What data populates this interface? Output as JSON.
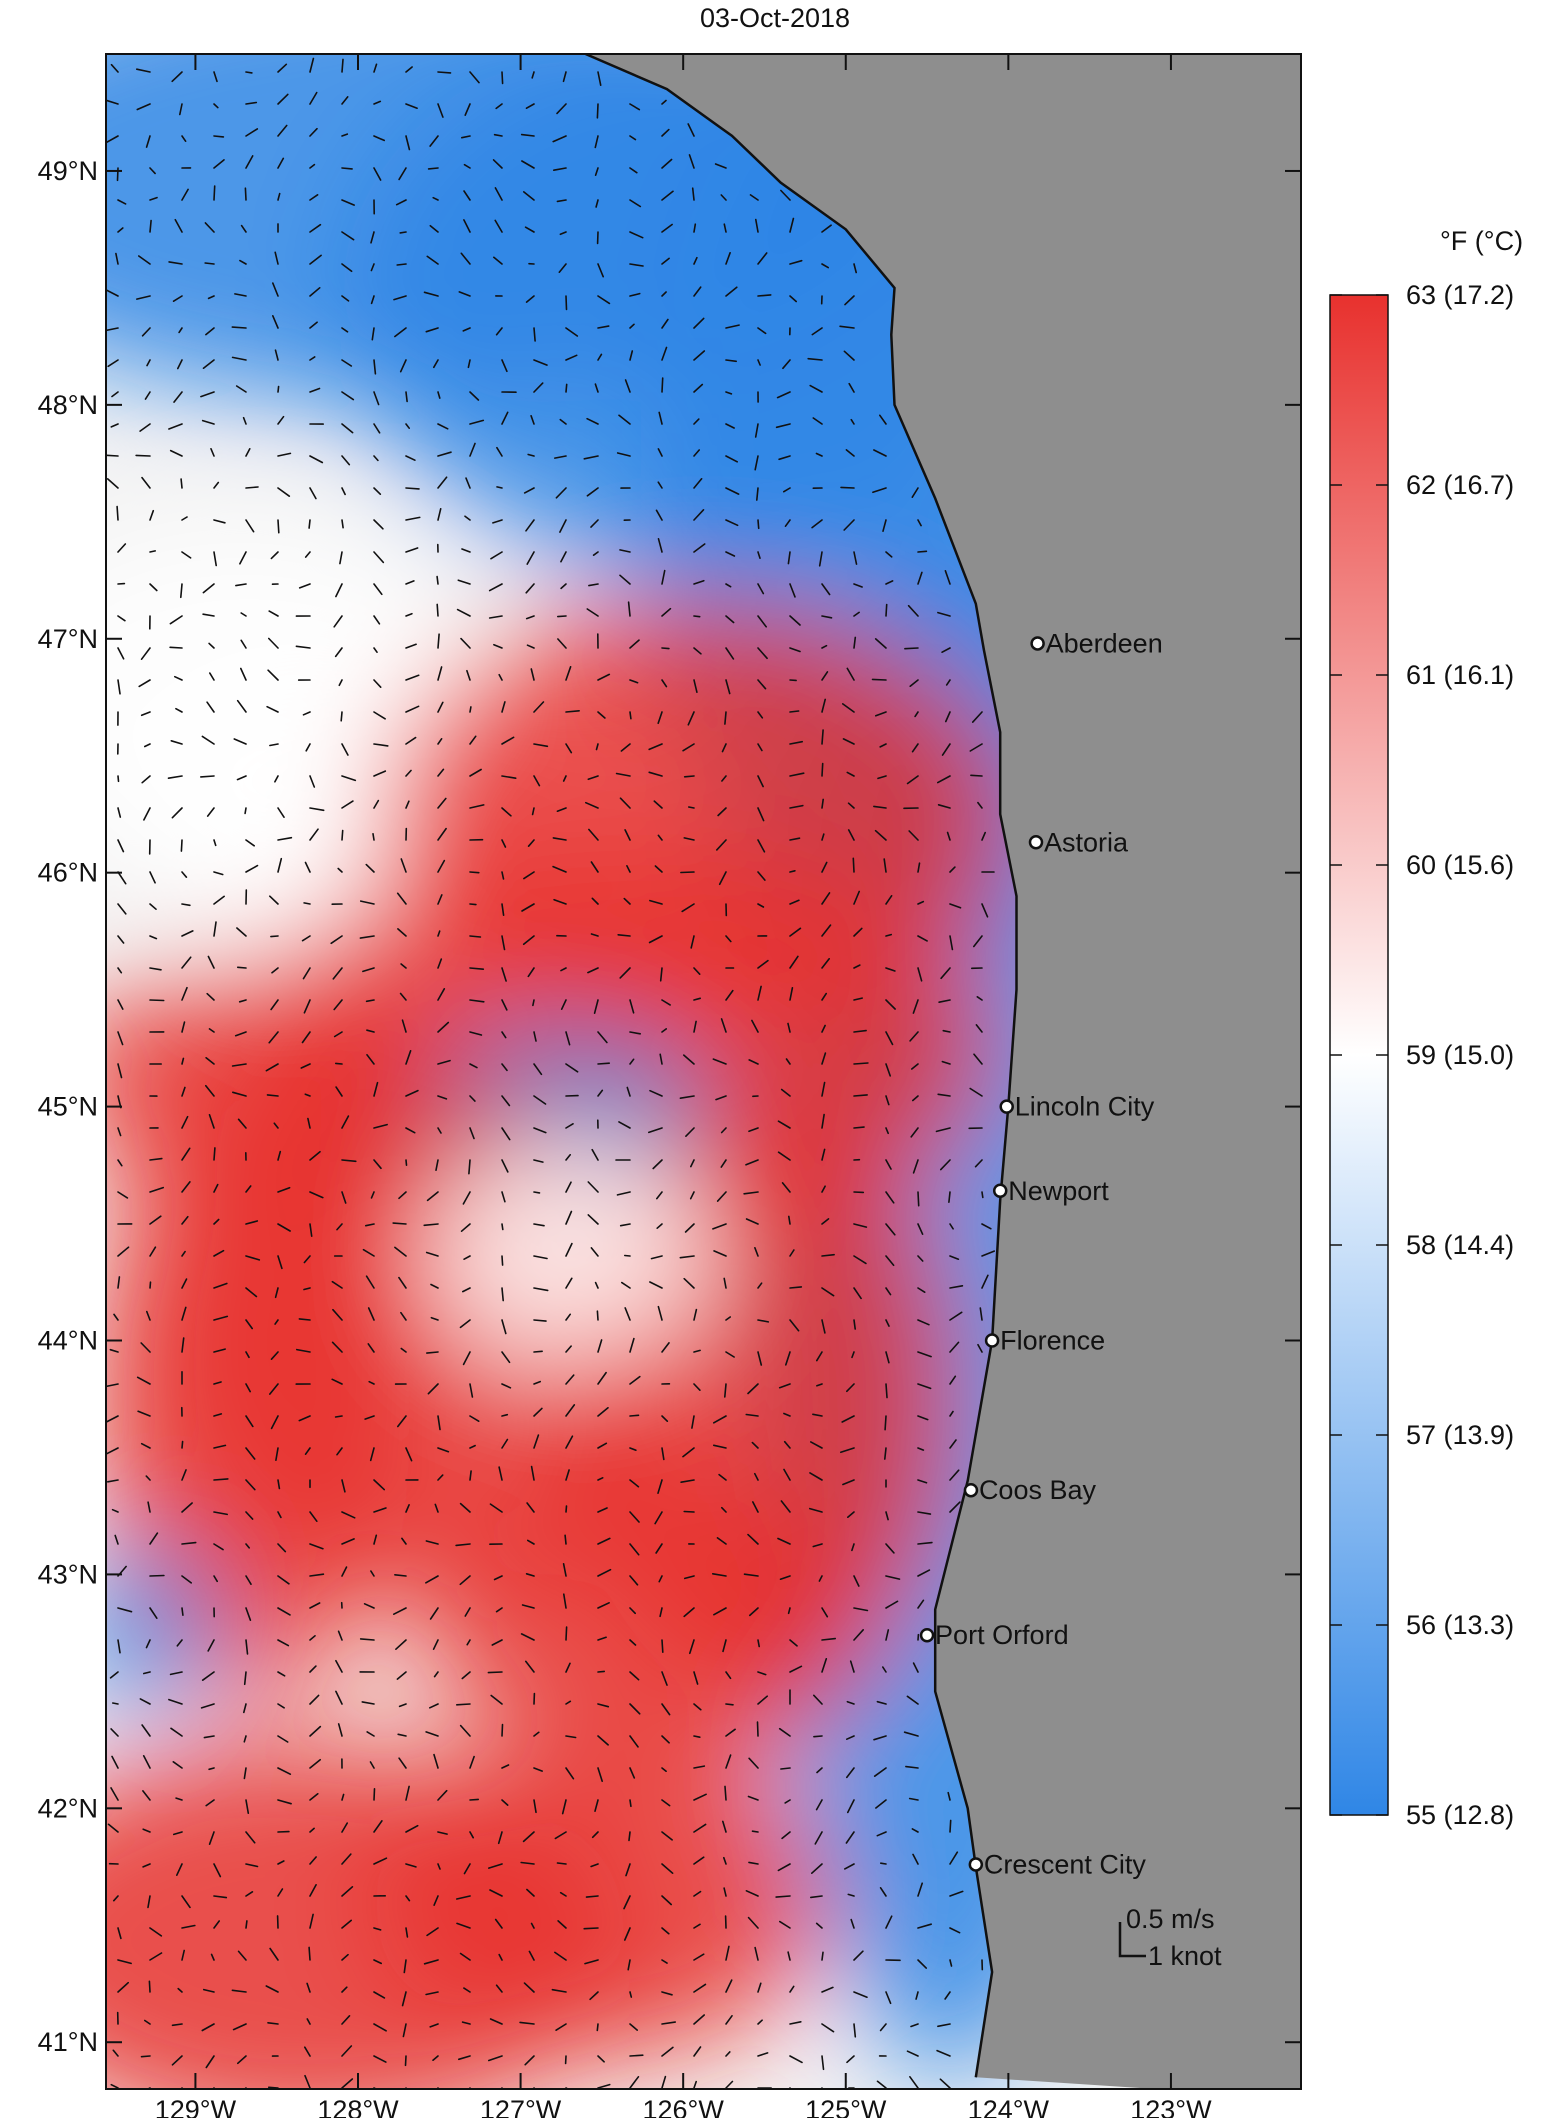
{
  "title": "03-Oct-2018",
  "map": {
    "lon_range": [
      -129.55,
      -122.2
    ],
    "lat_range": [
      40.8,
      49.5
    ],
    "lon_ticks": [
      {
        "value": -129,
        "label": "129°W"
      },
      {
        "value": -128,
        "label": "128°W"
      },
      {
        "value": -127,
        "label": "127°W"
      },
      {
        "value": -126,
        "label": "126°W"
      },
      {
        "value": -125,
        "label": "125°W"
      },
      {
        "value": -124,
        "label": "124°W"
      },
      {
        "value": -123,
        "label": "123°W"
      }
    ],
    "lat_ticks": [
      {
        "value": 49,
        "label": "49°N"
      },
      {
        "value": 48,
        "label": "48°N"
      },
      {
        "value": 47,
        "label": "47°N"
      },
      {
        "value": 46,
        "label": "46°N"
      },
      {
        "value": 45,
        "label": "45°N"
      },
      {
        "value": 44,
        "label": "44°N"
      },
      {
        "value": 43,
        "label": "43°N"
      },
      {
        "value": 42,
        "label": "42°N"
      },
      {
        "value": 41,
        "label": "41°N"
      }
    ],
    "coastline": [
      [
        -126.6,
        49.5
      ],
      [
        -126.1,
        49.35
      ],
      [
        -125.7,
        49.15
      ],
      [
        -125.4,
        48.95
      ],
      [
        -125.0,
        48.75
      ],
      [
        -124.7,
        48.5
      ],
      [
        -124.72,
        48.3
      ],
      [
        -124.7,
        48.0
      ],
      [
        -124.45,
        47.6
      ],
      [
        -124.2,
        47.15
      ],
      [
        -124.15,
        46.95
      ],
      [
        -124.05,
        46.6
      ],
      [
        -124.05,
        46.25
      ],
      [
        -123.95,
        45.9
      ],
      [
        -123.95,
        45.5
      ],
      [
        -124.0,
        45.0
      ],
      [
        -124.05,
        44.6
      ],
      [
        -124.1,
        44.0
      ],
      [
        -124.25,
        43.4
      ],
      [
        -124.45,
        42.85
      ],
      [
        -124.45,
        42.5
      ],
      [
        -124.25,
        42.0
      ],
      [
        -124.2,
        41.75
      ],
      [
        -124.1,
        41.3
      ],
      [
        -124.2,
        40.85
      ]
    ],
    "land_color": "#8e8e8e",
    "cities": [
      {
        "name": "Aberdeen",
        "lon": -123.82,
        "lat": 46.98
      },
      {
        "name": "Astoria",
        "lon": -123.83,
        "lat": 46.13
      },
      {
        "name": "Lincoln City",
        "lon": -124.01,
        "lat": 45.0
      },
      {
        "name": "Newport",
        "lon": -124.05,
        "lat": 44.64
      },
      {
        "name": "Florence",
        "lon": -124.1,
        "lat": 44.0
      },
      {
        "name": "Coos Bay",
        "lon": -124.23,
        "lat": 43.36
      },
      {
        "name": "Port Orford",
        "lon": -124.5,
        "lat": 42.74
      },
      {
        "name": "Crescent City",
        "lon": -124.2,
        "lat": 41.76
      }
    ],
    "scale": {
      "speed_label": "0.5 m/s",
      "knot_label": "1 knot"
    }
  },
  "colorbar": {
    "unit_label": "°F (°C)",
    "colors": {
      "low": "#2f86e6",
      "mid": "#ffffff",
      "high": "#e8312e"
    },
    "min": 55,
    "max": 63,
    "ticks": [
      {
        "value": 63,
        "label": "63 (17.2)"
      },
      {
        "value": 62,
        "label": "62 (16.7)"
      },
      {
        "value": 61,
        "label": "61 (16.1)"
      },
      {
        "value": 60,
        "label": "60 (15.6)"
      },
      {
        "value": 59,
        "label": "59 (15.0)"
      },
      {
        "value": 58,
        "label": "58 (14.4)"
      },
      {
        "value": 57,
        "label": "57 (13.9)"
      },
      {
        "value": 56,
        "label": "56 (13.3)"
      },
      {
        "value": 55,
        "label": "55 (12.8)"
      }
    ]
  }
}
